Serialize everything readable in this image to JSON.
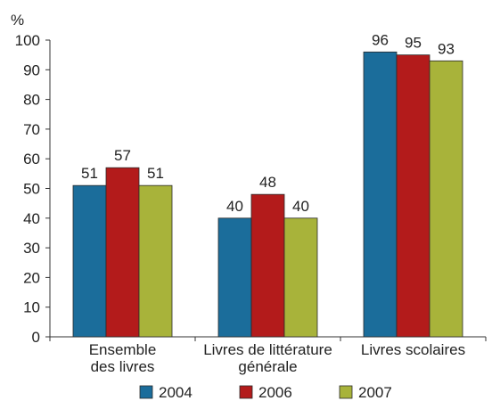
{
  "chart_data": {
    "type": "bar",
    "ylabel": "%",
    "ylim": [
      0,
      100
    ],
    "yticks": [
      0,
      10,
      20,
      30,
      40,
      50,
      60,
      70,
      80,
      90,
      100
    ],
    "categories": [
      [
        "Ensemble",
        "des livres"
      ],
      [
        "Livres de littérature",
        "générale"
      ],
      [
        "Livres scolaires"
      ]
    ],
    "series": [
      {
        "name": "2004",
        "color": "#1b6d9b",
        "values": [
          51,
          40,
          96
        ]
      },
      {
        "name": "2006",
        "color": "#b31b1b",
        "values": [
          57,
          48,
          95
        ]
      },
      {
        "name": "2007",
        "color": "#a8b33a",
        "values": [
          51,
          40,
          93
        ]
      }
    ],
    "legend_position": "bottom",
    "grid": false
  }
}
